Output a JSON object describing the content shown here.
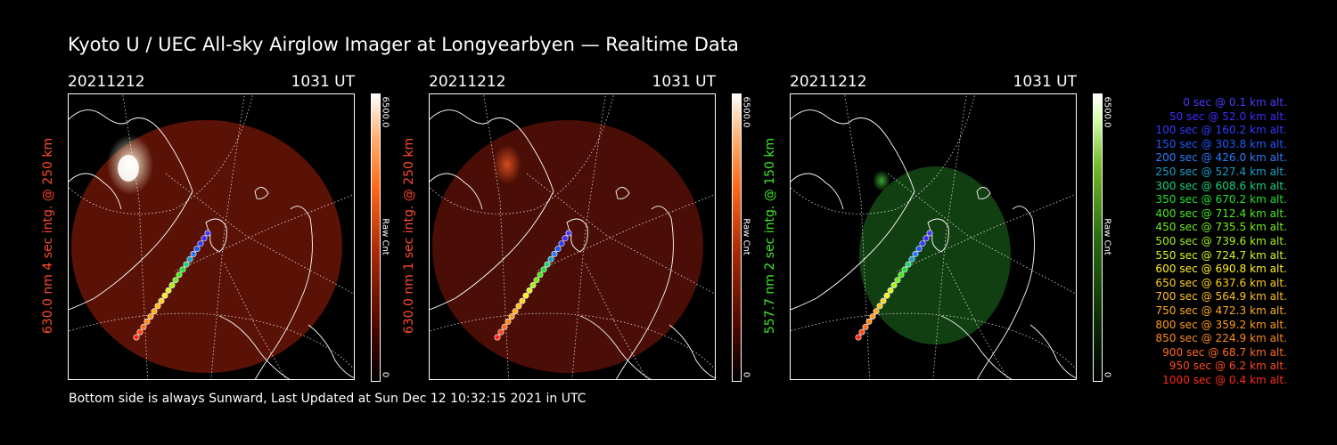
{
  "title": "Kyoto U / UEC All-sky Airglow Imager at Longyearbyen — Realtime Data",
  "panels": [
    {
      "date": "20211212",
      "time": "1031 UT",
      "side_label": "630.0 nm 4 sec intg. @ 250 km",
      "color_bar": {
        "max": "6500.0",
        "unit": "Raw Cnt",
        "min": "0"
      },
      "accent": "#ff4a2a",
      "image_tint": "#5a1206",
      "aurora_glow": "#fff6dc"
    },
    {
      "date": "20211212",
      "time": "1031 UT",
      "side_label": "630.0 nm 1 sec intg. @ 250 km",
      "color_bar": {
        "max": "6500.0",
        "unit": "Raw Cnt",
        "min": "0"
      },
      "accent": "#ff4a2a",
      "image_tint": "#4a0e06",
      "aurora_glow": "#d24a20"
    },
    {
      "date": "20211212",
      "time": "1031 UT",
      "side_label": "557.7 nm 2 sec intg. @ 150 km",
      "color_bar": {
        "max": "6500.0",
        "unit": "Raw Cnt",
        "min": "0"
      },
      "accent": "#3de82a",
      "image_tint": "#123f12",
      "aurora_glow": "#3aa334"
    }
  ],
  "footer": "Bottom side is always Sunward, Last Updated at Sun Dec 12 10:32:15 2021 in UTC",
  "legend": [
    {
      "sec": "0 sec @",
      "alt": "0.1 km alt.",
      "color": "#4a3cff"
    },
    {
      "sec": "50 sec @",
      "alt": "52.0 km alt.",
      "color": "#3e2cff"
    },
    {
      "sec": "100 sec @",
      "alt": "160.2 km alt.",
      "color": "#2f3cff"
    },
    {
      "sec": "150 sec @",
      "alt": "303.8 km alt.",
      "color": "#1e58ff"
    },
    {
      "sec": "200 sec @",
      "alt": "426.0 km alt.",
      "color": "#2a7cff"
    },
    {
      "sec": "250 sec @",
      "alt": "527.4 km alt.",
      "color": "#1aa0c8"
    },
    {
      "sec": "300 sec @",
      "alt": "608.6 km alt.",
      "color": "#19d27a"
    },
    {
      "sec": "350 sec @",
      "alt": "670.2 km alt.",
      "color": "#20e030"
    },
    {
      "sec": "400 sec @",
      "alt": "712.4 km alt.",
      "color": "#4ae81e"
    },
    {
      "sec": "450 sec @",
      "alt": "735.5 km alt.",
      "color": "#72ec1c"
    },
    {
      "sec": "500 sec @",
      "alt": "739.6 km alt.",
      "color": "#a6f01c"
    },
    {
      "sec": "550 sec @",
      "alt": "724.7 km alt.",
      "color": "#d8f41e"
    },
    {
      "sec": "600 sec @",
      "alt": "690.8 km alt.",
      "color": "#fff022"
    },
    {
      "sec": "650 sec @",
      "alt": "637.6 km alt.",
      "color": "#ffd020"
    },
    {
      "sec": "700 sec @",
      "alt": "564.9 km alt.",
      "color": "#ffc01c"
    },
    {
      "sec": "750 sec @",
      "alt": "472.3 km alt.",
      "color": "#ffac1c"
    },
    {
      "sec": "800 sec @",
      "alt": "359.2 km alt.",
      "color": "#ff9a1c"
    },
    {
      "sec": "850 sec @",
      "alt": "224.9 km alt.",
      "color": "#ff8a1c"
    },
    {
      "sec": "900 sec @",
      "alt": "68.7 km alt.",
      "color": "#ff6a1c"
    },
    {
      "sec": "950 sec @",
      "alt": "6.2 km alt.",
      "color": "#ff4a1c"
    },
    {
      "sec": "1000 sec @",
      "alt": "0.4 km alt.",
      "color": "#ff2a1c"
    }
  ]
}
